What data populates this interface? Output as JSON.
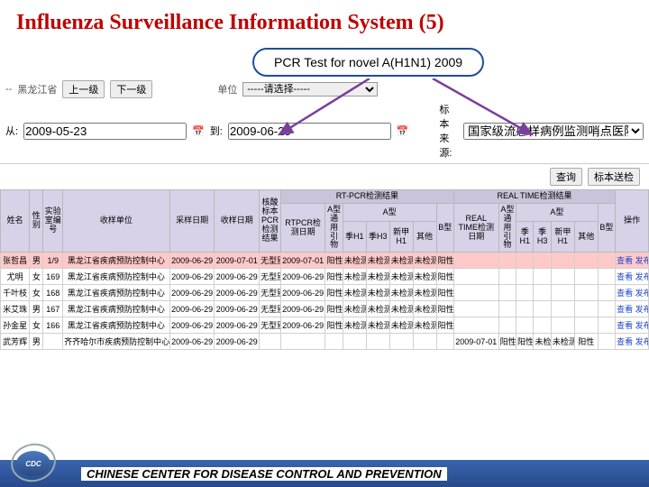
{
  "slide_title": "Influenza Surveillance Information System (5)",
  "callout_label": "PCR Test for novel A(H1N1) 2009",
  "toolbar": {
    "region_prefix": "--",
    "region": "黑龙江省",
    "up_level": "上一级",
    "prev": "下一级",
    "unit_label": "单位",
    "unit_placeholder": "-----请选择-----"
  },
  "toolbar2": {
    "from": "2009-05-23",
    "to_label": "到:",
    "to": "2009-06-29",
    "src_label": "标本来源:",
    "src_value": "国家级流感样病例监测哨点医院",
    "btn_query": "查询",
    "btn_send": "标本送检"
  },
  "headers": {
    "name": "姓名",
    "sex": "性别",
    "labno": "实验室编号",
    "collect_unit": "收样单位",
    "collect_date": "采样日期",
    "recv_date": "收样日期",
    "nucleic_group": "核酸标本PCR检测结果",
    "rtpcr_group": "RT-PCR检测结果",
    "realtime_group": "REAL TIME检测结果",
    "rtpcr_date": "RTPCR检测日期",
    "a_generic": "A型通用引物",
    "a_type": "A型",
    "b_type": "B型",
    "seasonal_h1": "季H1",
    "seasonal_h3": "季H3",
    "novel_h1": "新甲H1",
    "other": "其他",
    "real_date": "REAL TIME检测日期",
    "op": "操作"
  },
  "rows": [
    {
      "hl": true,
      "name": "张哲昌",
      "sex": "男",
      "lab": "1/9",
      "unit": "黑龙江省疾病预防控制中心",
      "cdate": "2009-06-29",
      "rdate": "2009-07-01",
      "nuc": "无型别",
      "rtd": "2009-07-01",
      "ag": "阳性",
      "h1": "未检测",
      "h3": "未检测",
      "nh1": "未检测",
      "oth": "未检测",
      "b": "阳性",
      "rld": "",
      "rag": "",
      "rh1": "",
      "rh3": "",
      "rnh1": "",
      "roth": "",
      "rb": "",
      "op": "查看 发布"
    },
    {
      "hl": false,
      "name": "尤明",
      "sex": "女",
      "lab": "169",
      "unit": "黑龙江省疾病预防控制中心",
      "cdate": "2009-06-29",
      "rdate": "2009-06-29",
      "nuc": "无型别",
      "rtd": "2009-06-29",
      "ag": "阳性",
      "h1": "未检测",
      "h3": "未检测",
      "nh1": "未检测",
      "oth": "未检测",
      "b": "阳性",
      "rld": "",
      "rag": "",
      "rh1": "",
      "rh3": "",
      "rnh1": "",
      "roth": "",
      "rb": "",
      "op": "查看 发布"
    },
    {
      "hl": false,
      "name": "千叶枝",
      "sex": "女",
      "lab": "168",
      "unit": "黑龙江省疾病预防控制中心",
      "cdate": "2009-06-29",
      "rdate": "2009-06-29",
      "nuc": "无型别",
      "rtd": "2009-06-29",
      "ag": "阳性",
      "h1": "未检测",
      "h3": "未检测",
      "nh1": "未检测",
      "oth": "未检测",
      "b": "阳性",
      "rld": "",
      "rag": "",
      "rh1": "",
      "rh3": "",
      "rnh1": "",
      "roth": "",
      "rb": "",
      "op": "查看 发布"
    },
    {
      "hl": false,
      "name": "米艾珠",
      "sex": "男",
      "lab": "167",
      "unit": "黑龙江省疾病预防控制中心",
      "cdate": "2009-06-29",
      "rdate": "2009-06-29",
      "nuc": "无型别",
      "rtd": "2009-06-29",
      "ag": "阳性",
      "h1": "未检测",
      "h3": "未检测",
      "nh1": "未检测",
      "oth": "未检测",
      "b": "阳性",
      "rld": "",
      "rag": "",
      "rh1": "",
      "rh3": "",
      "rnh1": "",
      "roth": "",
      "rb": "",
      "op": "查看 发布"
    },
    {
      "hl": false,
      "name": "孙金星",
      "sex": "女",
      "lab": "166",
      "unit": "黑龙江省疾病预防控制中心",
      "cdate": "2009-06-29",
      "rdate": "2009-06-29",
      "nuc": "无型别",
      "rtd": "2009-06-29",
      "ag": "阳性",
      "h1": "未检测",
      "h3": "未检测",
      "nh1": "未检测",
      "oth": "未检测",
      "b": "阳性",
      "rld": "",
      "rag": "",
      "rh1": "",
      "rh3": "",
      "rnh1": "",
      "roth": "",
      "rb": "",
      "op": "查看 发布"
    },
    {
      "hl": false,
      "name": "武芳辉",
      "sex": "男",
      "lab": "",
      "unit": "齐齐哈尔市疾病预防控制中心",
      "cdate": "2009-06-29",
      "rdate": "2009-06-29",
      "nuc": "",
      "rtd": "",
      "ag": "",
      "h1": "",
      "h3": "",
      "nh1": "",
      "oth": "",
      "b": "",
      "rld": "2009-07-01",
      "rag": "阳性",
      "rh1": "阳性",
      "rh3": "未检测",
      "rnh1": "未检测",
      "roth": "阳性",
      "rb": "",
      "op": "查看 发布"
    }
  ],
  "footer_text": "CHINESE CENTER FOR DISEASE CONTROL AND PREVENTION",
  "logo_text": "CDC"
}
